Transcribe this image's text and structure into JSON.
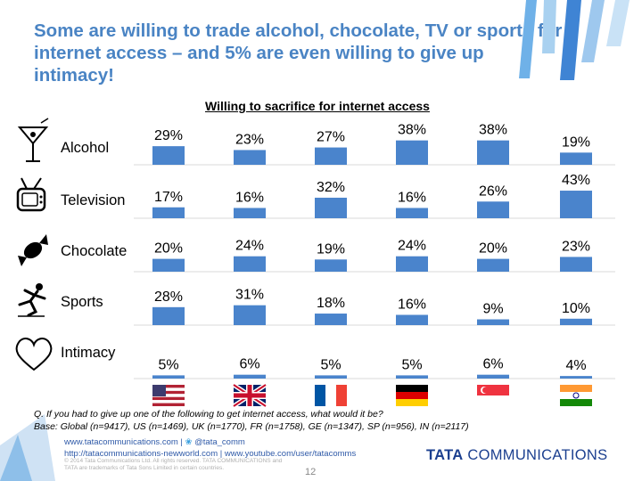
{
  "slide": {
    "title": "Some are willing to trade alcohol, chocolate, TV or sports for internet access – and 5% are even willing to give up intimacy!",
    "page_number": "12"
  },
  "chart_data": {
    "type": "bar",
    "title": "Willing to sacrifice for internet access",
    "countries": [
      "US",
      "UK",
      "FR",
      "GE",
      "SP",
      "IN"
    ],
    "rows": [
      {
        "label": "Alcohol",
        "icon": "martini-icon",
        "values": [
          29,
          23,
          27,
          38,
          38,
          19
        ]
      },
      {
        "label": "Television",
        "icon": "tv-icon",
        "values": [
          17,
          16,
          32,
          16,
          26,
          43
        ]
      },
      {
        "label": "Chocolate",
        "icon": "candy-icon",
        "values": [
          20,
          24,
          19,
          24,
          20,
          23
        ]
      },
      {
        "label": "Sports",
        "icon": "athlete-icon",
        "values": [
          28,
          31,
          18,
          16,
          9,
          10
        ]
      },
      {
        "label": "Intimacy",
        "icon": "heart-icon",
        "values": [
          5,
          6,
          5,
          5,
          6,
          4
        ]
      }
    ],
    "unit": "%",
    "bar_color": "#4a84cc"
  },
  "notes": {
    "question": "Q. If you had to give up one of the following to get internet access, what would it be?",
    "base": "Base: Global (n=9417), US (n=1469), UK (n=1770), FR (n=1758), GE (n=1347), SP (n=956), IN (n=2117)"
  },
  "footer": {
    "link_site": "www.tatacommunications.com",
    "twitter": "@tata_comm",
    "link_blog": "http://tatacommunications-newworld.com",
    "link_youtube": "www.youtube.com/user/tatacomms",
    "copyright": "© 2014 Tata Communications Ltd. All rights reserved. TATA COMMUNICATIONS and TATA are trademarks of Tata Sons Limited in certain countries.",
    "logo_bold": "TATA",
    "logo_rest": " COMMUNICATIONS"
  }
}
